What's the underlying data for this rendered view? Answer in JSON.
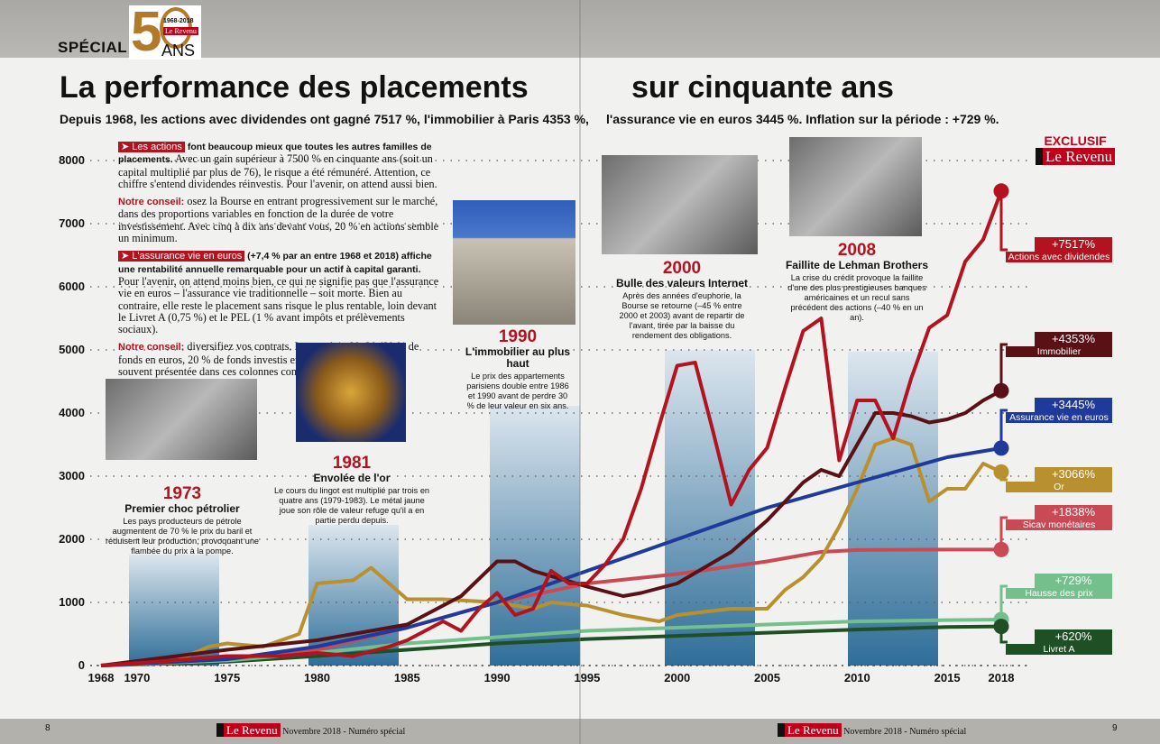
{
  "header": {
    "special": "SPÉCIAL",
    "logo_years": "1968-2018",
    "logo_brand": "Le Revenu",
    "logo_ans": "ANS"
  },
  "title_left": "La performance des placements",
  "title_right": "sur cinquante ans",
  "subtitle_left": "Depuis 1968, les actions avec dividendes ont gagné 7517 %, l'immobilier à Paris 4353 %,",
  "subtitle_right": "l'assurance vie en euros 3445 %. Inflation sur la période : +729 %.",
  "intro": {
    "p1_tag": "➤ Les actions",
    "p1_lead": " font beaucoup mieux que toutes les autres familles de placements.",
    "p1_body": " Avec un gain supérieur à 7500 % en cinquante ans (soit un capital multiplié par plus de 76), le risque a été rémunéré. Attention, ce chiffre s'entend dividendes réinvestis. Pour l'avenir, on attend aussi bien.",
    "c1_label": "Notre conseil:",
    "c1_body": " osez la Bourse en entrant progressivement sur le marché, dans des proportions variables en fonction de la durée de votre investissement. Avec cinq à dix ans devant vous, 20 % en actions semble un minimum.",
    "p2_tag": "➤ L'assurance vie en euros",
    "p2_lead": " (+7,4 % par an entre 1968 et 2018) affiche une rentabilité annuelle remarquable pour un actif à capital garanti.",
    "p2_body": " Pour l'avenir, on attend moins bien, ce qui ne signifie pas que l'assurance vie en euros – l'assurance vie traditionnelle – soit morte. Bien au contraire, elle reste le placement sans risque le plus rentable, loin devant le Livret A (0,75 %) et le PEL (1 % avant impôts et prélèvements sociaux).",
    "c2_label": "Notre conseil:",
    "c2_body": " diversifiez vos contrats. La stratégie 80–20 (80 % de fonds en euros, 20 % de fonds investis en actions internationales) souvent présentée dans ces colonnes constitue une bonne base de réflexion."
  },
  "events": [
    {
      "year": "1973",
      "title": "Premier choc pétrolier",
      "text": "Les pays producteurs de pétrole augmentent de 70 % le prix du baril et réduisent leur production, provoquant une flambée du prix à la pompe."
    },
    {
      "year": "1981",
      "title": "Envolée de l'or",
      "text": "Le cours du lingot est multiplié par trois en quatre ans (1979-1983). Le métal jaune joue son rôle de valeur refuge qu'il a en partie perdu depuis."
    },
    {
      "year": "1990",
      "title": "L'immobilier au plus haut",
      "text": "Le prix des appartements parisiens double entre 1986 et 1990 avant de perdre 30 % de leur valeur en six ans."
    },
    {
      "year": "2000",
      "title": "Bulle des valeurs Internet",
      "text": "Après des années d'euphorie, la Bourse se retourne (–45 % entre 2000 et 2003) avant de repartir de l'avant, tirée par la baisse du rendement des obligations."
    },
    {
      "year": "2008",
      "title": "Faillite de Lehman Brothers",
      "text": "La crise du crédit provoque la faillite d'une des plus prestigieuses banques américaines et un recul sans précédent des actions (–40 % en un an)."
    }
  ],
  "exclusive": {
    "label": "EXCLUSIF",
    "brand": "Le Revenu"
  },
  "footer": {
    "page_left": "8",
    "page_right": "9",
    "brand": "Le Revenu",
    "issue": "Novembre 2018 - Numéro spécial"
  },
  "chart_data": {
    "type": "line",
    "xlim": [
      1968,
      2018
    ],
    "ylim": [
      0,
      8000
    ],
    "x_ticks": [
      "1968",
      "1970",
      "1975",
      "1980",
      "1985",
      "1990",
      "1995",
      "2000",
      "2005",
      "2010",
      "2015",
      "2018"
    ],
    "y_ticks": [
      "0",
      "1000",
      "2000",
      "3000",
      "4000",
      "5000",
      "6000",
      "7000",
      "8000"
    ],
    "grid": "horizontal-dotted",
    "series": [
      {
        "name": "Actions avec dividendes",
        "final_label": "+7517%",
        "color": "#b3121f",
        "points": [
          [
            1968,
            0
          ],
          [
            1972,
            80
          ],
          [
            1975,
            150
          ],
          [
            1978,
            150
          ],
          [
            1980,
            200
          ],
          [
            1982,
            150
          ],
          [
            1984,
            300
          ],
          [
            1985,
            400
          ],
          [
            1987,
            700
          ],
          [
            1988,
            550
          ],
          [
            1989,
            900
          ],
          [
            1990,
            1150
          ],
          [
            1991,
            800
          ],
          [
            1992,
            900
          ],
          [
            1993,
            1500
          ],
          [
            1994,
            1300
          ],
          [
            1995,
            1300
          ],
          [
            1996,
            1600
          ],
          [
            1997,
            2000
          ],
          [
            1998,
            2800
          ],
          [
            1999,
            3800
          ],
          [
            2000,
            4750
          ],
          [
            2001,
            4800
          ],
          [
            2002,
            3700
          ],
          [
            2003,
            2550
          ],
          [
            2004,
            3100
          ],
          [
            2005,
            3450
          ],
          [
            2006,
            4400
          ],
          [
            2007,
            5300
          ],
          [
            2008,
            5500
          ],
          [
            2009,
            3250
          ],
          [
            2010,
            4200
          ],
          [
            2011,
            4200
          ],
          [
            2012,
            3600
          ],
          [
            2013,
            4550
          ],
          [
            2014,
            5350
          ],
          [
            2015,
            5550
          ],
          [
            2016,
            6400
          ],
          [
            2017,
            6750
          ],
          [
            2018,
            7517
          ]
        ]
      },
      {
        "name": "Immobilier",
        "final_label": "+4353%",
        "color": "#5a1115",
        "points": [
          [
            1968,
            0
          ],
          [
            1975,
            250
          ],
          [
            1980,
            400
          ],
          [
            1985,
            650
          ],
          [
            1988,
            1100
          ],
          [
            1990,
            1650
          ],
          [
            1991,
            1650
          ],
          [
            1992,
            1500
          ],
          [
            1995,
            1250
          ],
          [
            1997,
            1100
          ],
          [
            1998,
            1150
          ],
          [
            2000,
            1300
          ],
          [
            2003,
            1800
          ],
          [
            2005,
            2300
          ],
          [
            2007,
            2900
          ],
          [
            2008,
            3100
          ],
          [
            2009,
            3000
          ],
          [
            2010,
            3500
          ],
          [
            2011,
            4000
          ],
          [
            2012,
            4000
          ],
          [
            2013,
            3950
          ],
          [
            2014,
            3850
          ],
          [
            2015,
            3900
          ],
          [
            2016,
            4000
          ],
          [
            2017,
            4200
          ],
          [
            2018,
            4353
          ]
        ]
      },
      {
        "name": "Assurance vie en euros",
        "final_label": "+3445%",
        "color": "#1f3a9a",
        "points": [
          [
            1968,
            0
          ],
          [
            1975,
            100
          ],
          [
            1980,
            300
          ],
          [
            1985,
            600
          ],
          [
            1990,
            1000
          ],
          [
            1995,
            1500
          ],
          [
            2000,
            2000
          ],
          [
            2005,
            2500
          ],
          [
            2010,
            2900
          ],
          [
            2015,
            3300
          ],
          [
            2018,
            3445
          ]
        ]
      },
      {
        "name": "Or",
        "final_label": "+3066%",
        "color": "#b8902f",
        "points": [
          [
            1968,
            0
          ],
          [
            1972,
            50
          ],
          [
            1974,
            300
          ],
          [
            1975,
            350
          ],
          [
            1977,
            300
          ],
          [
            1979,
            500
          ],
          [
            1980,
            1300
          ],
          [
            1982,
            1350
          ],
          [
            1983,
            1550
          ],
          [
            1984,
            1300
          ],
          [
            1985,
            1050
          ],
          [
            1987,
            1050
          ],
          [
            1990,
            1000
          ],
          [
            1992,
            900
          ],
          [
            1993,
            1000
          ],
          [
            1995,
            950
          ],
          [
            1997,
            800
          ],
          [
            1999,
            700
          ],
          [
            2000,
            800
          ],
          [
            2003,
            900
          ],
          [
            2005,
            900
          ],
          [
            2006,
            1200
          ],
          [
            2007,
            1400
          ],
          [
            2008,
            1700
          ],
          [
            2009,
            2200
          ],
          [
            2010,
            2800
          ],
          [
            2011,
            3500
          ],
          [
            2012,
            3600
          ],
          [
            2013,
            3500
          ],
          [
            2014,
            2600
          ],
          [
            2015,
            2800
          ],
          [
            2016,
            2800
          ],
          [
            2017,
            3200
          ],
          [
            2018,
            3066
          ]
        ]
      },
      {
        "name": "Sicav monétaires",
        "final_label": "+1838%",
        "color": "#c94a55",
        "points": [
          [
            1968,
            0
          ],
          [
            1975,
            100
          ],
          [
            1980,
            250
          ],
          [
            1985,
            600
          ],
          [
            1990,
            1000
          ],
          [
            1995,
            1300
          ],
          [
            2000,
            1450
          ],
          [
            2005,
            1650
          ],
          [
            2008,
            1800
          ],
          [
            2010,
            1830
          ],
          [
            2015,
            1838
          ],
          [
            2018,
            1838
          ]
        ]
      },
      {
        "name": "Hausse des prix",
        "final_label": "+729%",
        "color": "#74c08c",
        "points": [
          [
            1968,
            0
          ],
          [
            1975,
            80
          ],
          [
            1980,
            200
          ],
          [
            1985,
            350
          ],
          [
            1990,
            450
          ],
          [
            1995,
            550
          ],
          [
            2000,
            600
          ],
          [
            2005,
            650
          ],
          [
            2010,
            700
          ],
          [
            2015,
            720
          ],
          [
            2018,
            729
          ]
        ]
      },
      {
        "name": "Livret A",
        "final_label": "+620%",
        "color": "#1f4f24",
        "points": [
          [
            1968,
            0
          ],
          [
            1975,
            60
          ],
          [
            1980,
            150
          ],
          [
            1985,
            250
          ],
          [
            1990,
            350
          ],
          [
            1995,
            420
          ],
          [
            2000,
            470
          ],
          [
            2005,
            520
          ],
          [
            2010,
            570
          ],
          [
            2015,
            610
          ],
          [
            2018,
            620
          ]
        ]
      }
    ]
  }
}
